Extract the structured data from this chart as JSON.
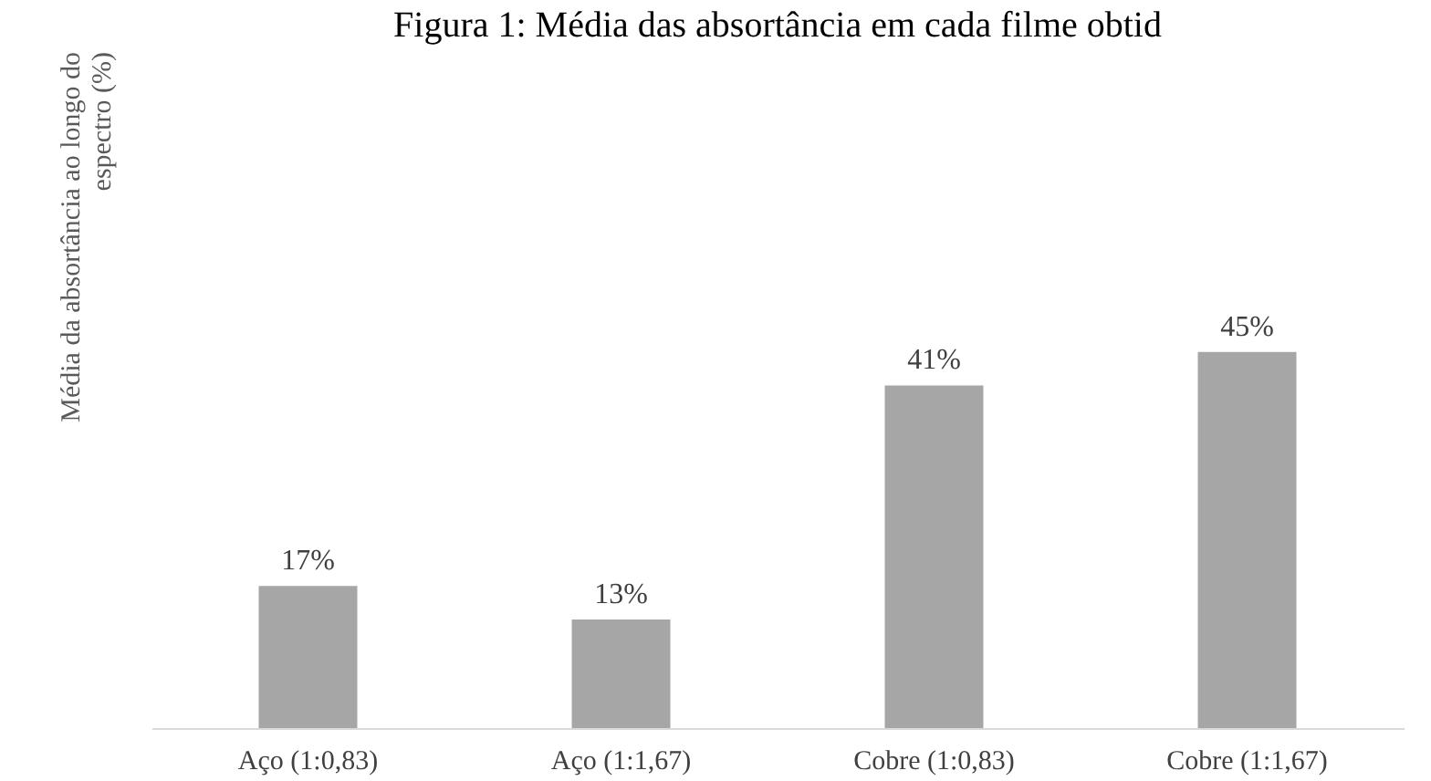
{
  "chart_data": {
    "type": "bar",
    "title": "Figura 1: Média das absortância em cada filme obtid",
    "ylabel": "Média da absortância ao longo do espectro (%)",
    "categories": [
      "Aço (1:0,83)",
      "Aço (1:1,67)",
      "Cobre (1:0,83)",
      "Cobre (1:1,67)"
    ],
    "values": [
      17,
      13,
      41,
      45
    ],
    "color": "#a6a6a6",
    "value_labels": [
      "17%",
      "13%",
      "41%",
      "45%"
    ],
    "grid": false
  }
}
